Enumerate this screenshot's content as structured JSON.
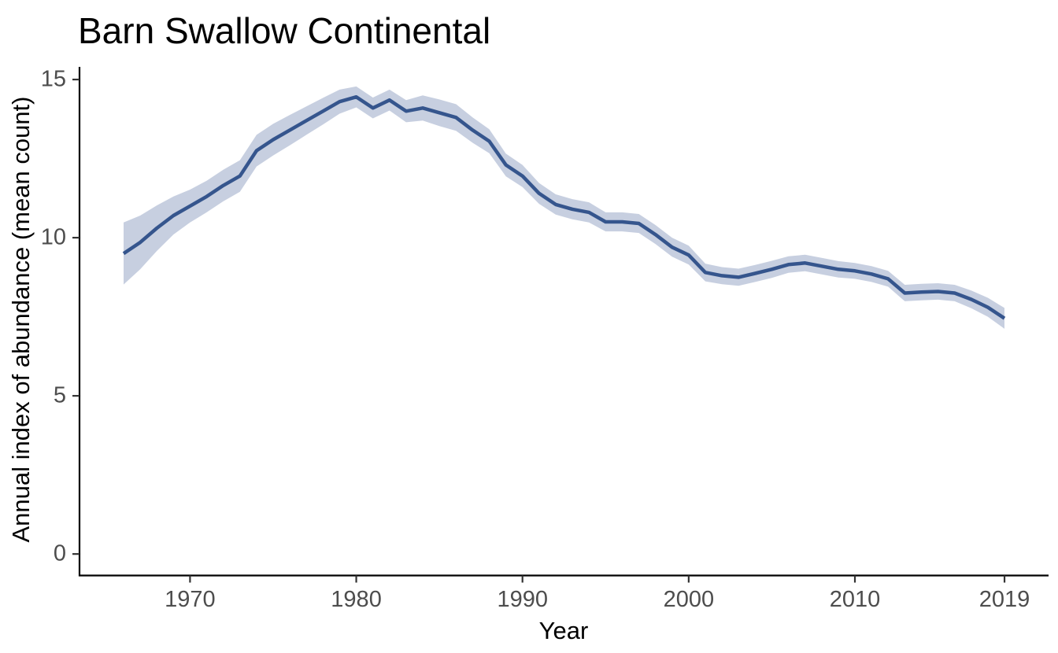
{
  "figure": {
    "background": "#ffffff",
    "colors": {
      "trend_line": "#35558d",
      "confidence_ribbon": "#c7cfe0",
      "axis_line": "#000000",
      "tick_mark": "#333333",
      "tick_label_text": "#4d4d4d",
      "title_text": "#000000"
    }
  },
  "chart_data": {
    "type": "line",
    "title": "Barn Swallow Continental",
    "xlabel": "Year",
    "ylabel": "Annual index of abundance (mean count)",
    "grid": false,
    "legend": false,
    "x_ticks": [
      1970,
      1980,
      1990,
      2000,
      2010,
      2019
    ],
    "y_ticks": [
      0,
      5,
      10,
      15
    ],
    "xlim": [
      1963.35,
      2021.65
    ],
    "ylim": [
      -0.68,
      15.4
    ],
    "x": [
      1966,
      1967,
      1968,
      1969,
      1970,
      1971,
      1972,
      1973,
      1974,
      1975,
      1976,
      1977,
      1978,
      1979,
      1980,
      1981,
      1982,
      1983,
      1984,
      1985,
      1986,
      1987,
      1988,
      1989,
      1990,
      1991,
      1992,
      1993,
      1994,
      1995,
      1996,
      1997,
      1998,
      1999,
      2000,
      2001,
      2002,
      2003,
      2004,
      2005,
      2006,
      2007,
      2008,
      2009,
      2010,
      2011,
      2012,
      2013,
      2014,
      2015,
      2016,
      2017,
      2018,
      2019
    ],
    "series": [
      {
        "name": "annual_index",
        "role": "trend-line",
        "values": [
          9.5,
          9.85,
          10.3,
          10.7,
          11.0,
          11.3,
          11.65,
          11.95,
          12.75,
          13.1,
          13.4,
          13.7,
          14.0,
          14.3,
          14.45,
          14.1,
          14.35,
          14.0,
          14.1,
          13.95,
          13.8,
          13.4,
          13.05,
          12.3,
          11.95,
          11.4,
          11.05,
          10.9,
          10.8,
          10.5,
          10.5,
          10.45,
          10.1,
          9.7,
          9.45,
          8.9,
          8.8,
          8.75,
          8.87,
          9.0,
          9.15,
          9.2,
          9.1,
          9.0,
          8.95,
          8.85,
          8.7,
          8.25,
          8.28,
          8.3,
          8.25,
          8.05,
          7.8,
          7.45
        ]
      },
      {
        "name": "ci_upper",
        "role": "ribbon-upper",
        "values": [
          10.48,
          10.7,
          11.02,
          11.3,
          11.52,
          11.8,
          12.15,
          12.45,
          13.25,
          13.6,
          13.88,
          14.15,
          14.42,
          14.68,
          14.78,
          14.43,
          14.68,
          14.35,
          14.5,
          14.37,
          14.22,
          13.8,
          13.43,
          12.66,
          12.3,
          11.73,
          11.37,
          11.22,
          11.12,
          10.8,
          10.8,
          10.75,
          10.4,
          10.0,
          9.75,
          9.18,
          9.07,
          9.02,
          9.14,
          9.27,
          9.41,
          9.46,
          9.36,
          9.26,
          9.2,
          9.1,
          8.95,
          8.51,
          8.54,
          8.56,
          8.51,
          8.33,
          8.1,
          7.78
        ]
      },
      {
        "name": "ci_lower",
        "role": "ribbon-lower",
        "values": [
          8.52,
          9.0,
          9.58,
          10.1,
          10.48,
          10.8,
          11.15,
          11.45,
          12.25,
          12.6,
          12.92,
          13.25,
          13.58,
          13.92,
          14.12,
          13.77,
          14.02,
          13.65,
          13.7,
          13.53,
          13.38,
          13.0,
          12.67,
          11.94,
          11.6,
          11.07,
          10.73,
          10.58,
          10.48,
          10.2,
          10.2,
          10.15,
          9.8,
          9.4,
          9.15,
          8.62,
          8.53,
          8.48,
          8.6,
          8.73,
          8.89,
          8.94,
          8.84,
          8.74,
          8.7,
          8.6,
          8.45,
          7.99,
          8.02,
          8.04,
          7.99,
          7.77,
          7.5,
          7.12
        ]
      }
    ]
  }
}
